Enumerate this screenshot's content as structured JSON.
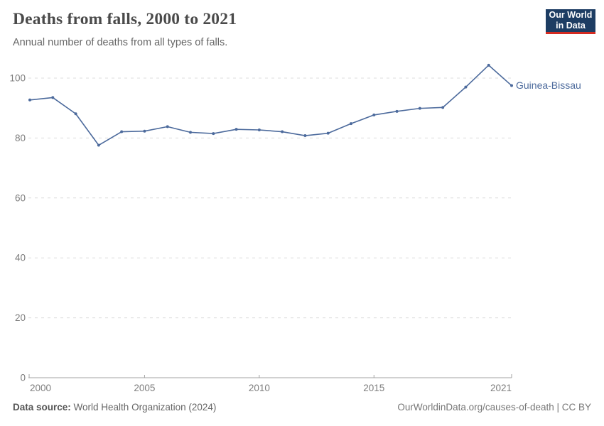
{
  "header": {
    "title": "Deaths from falls, 2000 to 2021",
    "subtitle": "Annual number of deaths from all types of falls."
  },
  "logo": {
    "line1": "Our World",
    "line2": "in Data",
    "bg_color": "#1d3d63",
    "accent_color": "#d42b21"
  },
  "chart_data": {
    "type": "line",
    "title": "Deaths from falls, 2000 to 2021",
    "xlabel": "",
    "ylabel": "",
    "x": [
      2000,
      2001,
      2002,
      2003,
      2004,
      2005,
      2006,
      2007,
      2008,
      2009,
      2010,
      2011,
      2012,
      2013,
      2014,
      2015,
      2016,
      2017,
      2018,
      2019,
      2020,
      2021
    ],
    "series": [
      {
        "name": "Guinea-Bissau",
        "color": "#4C6A9C",
        "values": [
          92.7,
          93.5,
          88.1,
          77.6,
          82.1,
          82.3,
          83.8,
          81.9,
          81.5,
          82.9,
          82.7,
          82.1,
          80.8,
          81.6,
          84.8,
          87.7,
          88.9,
          89.9,
          90.2,
          97.0,
          104.3,
          97.5
        ]
      }
    ],
    "x_tick_values": [
      2000,
      2005,
      2010,
      2015,
      2021
    ],
    "x_tick_labels": [
      "2000",
      "2005",
      "2010",
      "2015",
      "2021"
    ],
    "y_ticks": [
      0,
      20,
      40,
      60,
      80,
      100
    ],
    "xlim": [
      2000,
      2021
    ],
    "ylim": [
      0,
      100
    ],
    "grid": "horizontal-dashed",
    "legend_position": "end-of-line-label"
  },
  "colors": {
    "line": "#4C6A9C",
    "grid": "#dcdcdc",
    "axis": "#a3a3a3",
    "tick_text": "#7d7d7d"
  },
  "footer": {
    "source_label": "Data source:",
    "source_value": " World Health Organization (2024)",
    "license": "OurWorldinData.org/causes-of-death | CC BY"
  }
}
